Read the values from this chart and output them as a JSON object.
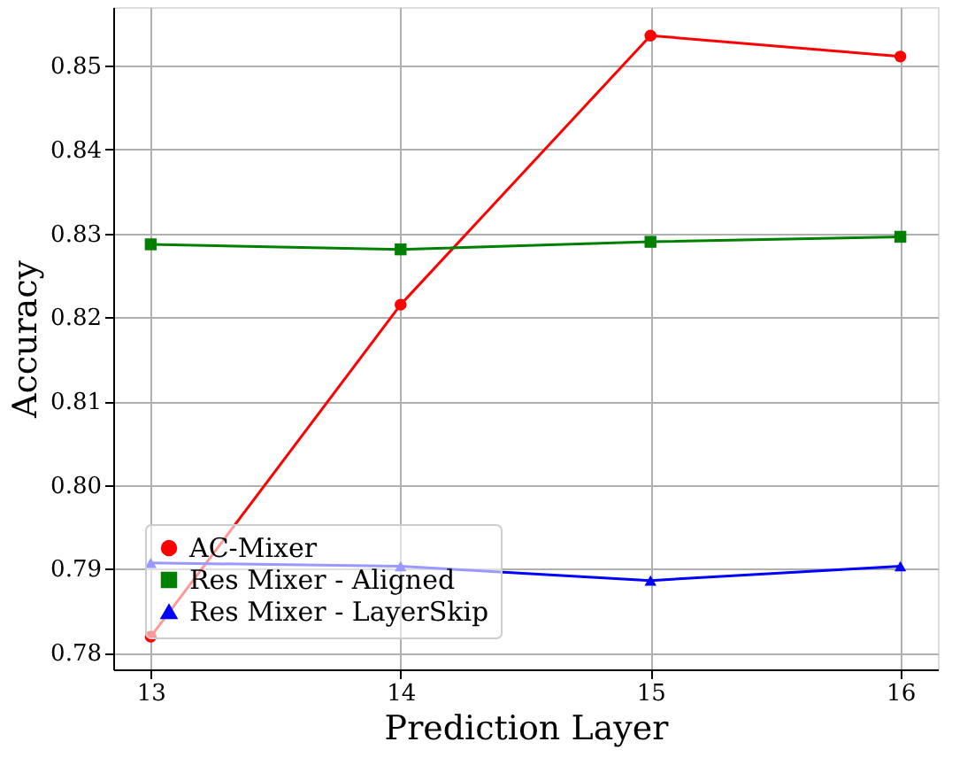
{
  "chart_data": {
    "type": "line",
    "xlabel": "Prediction Layer",
    "ylabel": "Accuracy",
    "x": [
      13,
      14,
      15,
      16
    ],
    "series": [
      {
        "name": "AC-Mixer",
        "color": "#ff0000",
        "marker": "circle",
        "values": [
          0.7819,
          0.8215,
          0.8536,
          0.8511
        ]
      },
      {
        "name": "Res Mixer - Aligned",
        "color": "#008000",
        "marker": "square",
        "values": [
          0.8287,
          0.8281,
          0.829,
          0.8296
        ]
      },
      {
        "name": "Res Mixer - LayerSkip",
        "color": "#0000ff",
        "marker": "triangle",
        "values": [
          0.7907,
          0.7903,
          0.7886,
          0.7903
        ]
      }
    ],
    "xlim": [
      12.85,
      16.15
    ],
    "xticks": [
      13,
      14,
      15,
      16
    ],
    "ylim": [
      0.778,
      0.857
    ],
    "yticks": [
      {
        "value": 0.78,
        "label": "0.78"
      },
      {
        "value": 0.79,
        "label": "0.79"
      },
      {
        "value": 0.8,
        "label": "0.80"
      },
      {
        "value": 0.81,
        "label": "0.81"
      },
      {
        "value": 0.82,
        "label": "0.82"
      },
      {
        "value": 0.83,
        "label": "0.83"
      },
      {
        "value": 0.84,
        "label": "0.84"
      },
      {
        "value": 0.85,
        "label": "0.85"
      }
    ],
    "grid": true,
    "legend": "bottom left",
    "line_style": "solid"
  }
}
